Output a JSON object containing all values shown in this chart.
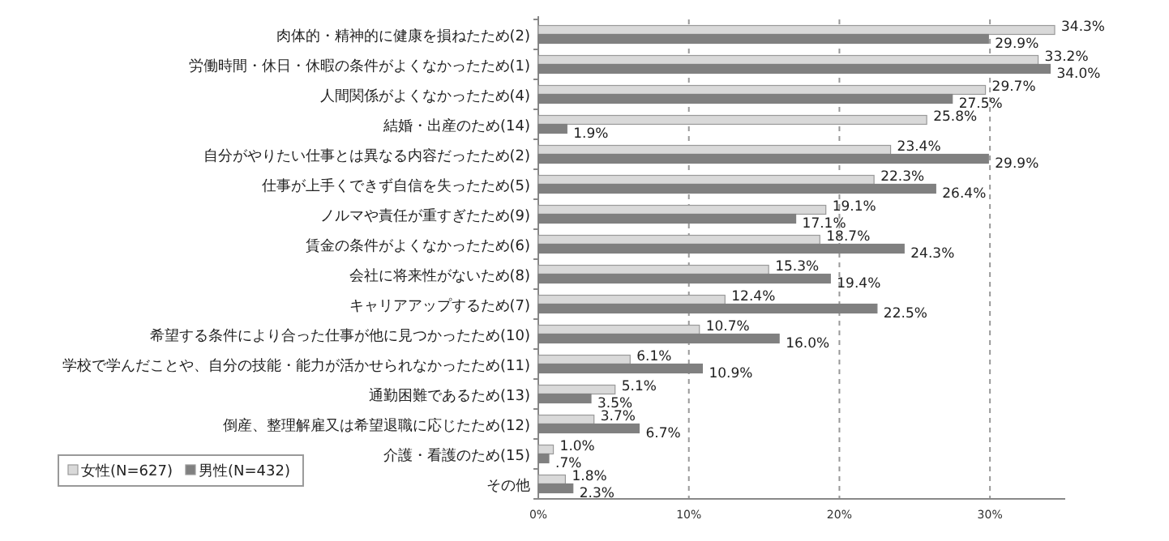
{
  "chart_data": {
    "type": "bar",
    "orientation": "horizontal",
    "categories": [
      "肉体的・精神的に健康を損ねたため(2)",
      "労働時間・休日・休暇の条件がよくなかったため(1)",
      "人間関係がよくなかったため(4)",
      "結婚・出産のため(14)",
      "自分がやりたい仕事とは異なる内容だったため(2)",
      "仕事が上手くできず自信を失ったため(5)",
      "ノルマや責任が重すぎたため(9)",
      "賃金の条件がよくなかったため(6)",
      "会社に将来性がないため(8)",
      "キャリアアップするため(7)",
      "希望する条件により合った仕事が他に見つかったため(10)",
      "学校で学んだことや、自分の技能・能力が活かせられなかったため(11)",
      "通勤困難であるため(13)",
      "倒産、整理解雇又は希望退職に応じたため(12)",
      "介護・看護のため(15)",
      "その他"
    ],
    "series": [
      {
        "name": "女性(N=627)",
        "color": "#d9d9d9",
        "values": [
          34.3,
          33.2,
          29.7,
          25.8,
          23.4,
          22.3,
          19.1,
          18.7,
          15.3,
          12.4,
          10.7,
          6.1,
          5.1,
          3.7,
          1.0,
          1.8
        ],
        "value_labels": [
          "34.3%",
          "33.2%",
          "29.7%",
          "25.8%",
          "23.4%",
          "22.3%",
          "19.1%",
          "18.7%",
          "15.3%",
          "12.4%",
          "10.7%",
          "6.1%",
          "5.1%",
          "3.7%",
          "1.0%",
          "1.8%"
        ]
      },
      {
        "name": "男性(N=432)",
        "color": "#808080",
        "values": [
          29.9,
          34.0,
          27.5,
          1.9,
          29.9,
          26.4,
          17.1,
          24.3,
          19.4,
          22.5,
          16.0,
          10.9,
          3.5,
          6.7,
          0.7,
          2.3
        ],
        "value_labels": [
          "29.9%",
          "34.0%",
          "27.5%",
          "1.9%",
          "29.9%",
          "26.4%",
          "17.1%",
          "24.3%",
          "19.4%",
          "22.5%",
          "16.0%",
          "10.9%",
          "3.5%",
          "6.7%",
          ".7%",
          "2.3%"
        ]
      }
    ],
    "xlim": [
      0,
      35
    ],
    "xticks": [
      {
        "value": 0,
        "label": "0%"
      },
      {
        "value": 10,
        "label": "10%"
      },
      {
        "value": 20,
        "label": "20%"
      },
      {
        "value": 30,
        "label": "30%"
      }
    ],
    "grid": "x",
    "legend": "bottom left"
  }
}
